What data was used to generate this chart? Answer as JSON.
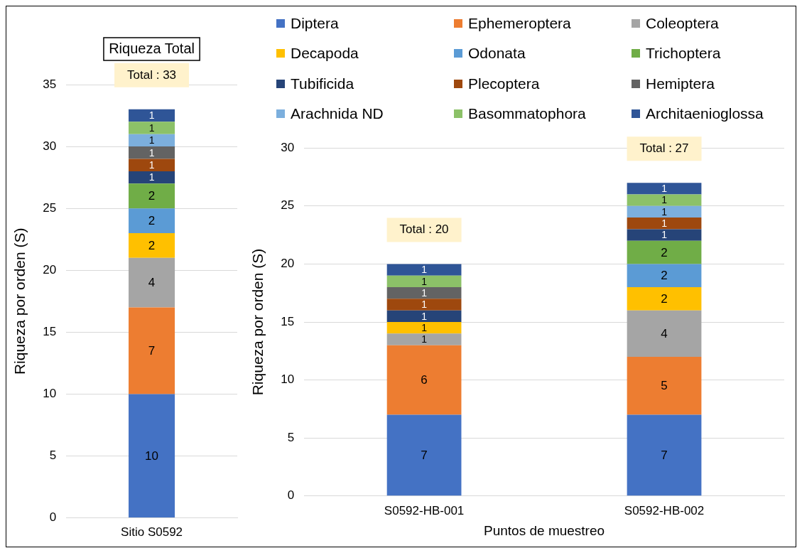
{
  "chart_data": [
    {
      "type": "bar",
      "title": "Riqueza Total",
      "ylabel": "Riqueza por orden (S)",
      "categories": [
        "Sitio S0592"
      ],
      "stacked": true,
      "ylim": [
        0,
        35
      ],
      "yticks": [
        0,
        5,
        10,
        15,
        20,
        25,
        30,
        35
      ],
      "grid": "y",
      "legend": false,
      "data_labels": true,
      "totals": [
        "Total : 33"
      ],
      "series": [
        {
          "color": "#4472c4",
          "values": [
            10
          ]
        },
        {
          "color": "#ed7d31",
          "values": [
            7
          ]
        },
        {
          "color": "#a5a5a5",
          "values": [
            4
          ]
        },
        {
          "color": "#ffc000",
          "values": [
            2
          ]
        },
        {
          "color": "#5b9bd5",
          "values": [
            2
          ]
        },
        {
          "color": "#70ad47",
          "values": [
            2
          ]
        },
        {
          "color": "#264478",
          "values": [
            1
          ]
        },
        {
          "color": "#9e480e",
          "values": [
            1
          ]
        },
        {
          "color": "#636363",
          "values": [
            1
          ]
        },
        {
          "color": "#7cafdd",
          "values": [
            1
          ]
        },
        {
          "color": "#8cc168",
          "values": [
            1
          ]
        },
        {
          "color": "#2f5597",
          "values": [
            1
          ]
        }
      ]
    },
    {
      "type": "bar",
      "ylabel": "Riqueza por orden (S)",
      "xlabel": "Puntos de muestreo",
      "categories": [
        "S0592-HB-001",
        "S0592-HB-002"
      ],
      "stacked": true,
      "ylim": [
        0,
        30
      ],
      "yticks": [
        0,
        5,
        10,
        15,
        20,
        25,
        30
      ],
      "grid": "y",
      "legend": "top",
      "data_labels": true,
      "totals": [
        "Total : 20",
        "Total : 27"
      ],
      "series": [
        {
          "name": "Diptera",
          "color": "#4472c4",
          "values": [
            7,
            7
          ]
        },
        {
          "name": "Ephemeroptera",
          "color": "#ed7d31",
          "values": [
            6,
            5
          ]
        },
        {
          "name": "Coleoptera",
          "color": "#a5a5a5",
          "values": [
            1,
            4
          ]
        },
        {
          "name": "Decapoda",
          "color": "#ffc000",
          "values": [
            1,
            2
          ]
        },
        {
          "name": "Odonata",
          "color": "#5b9bd5",
          "values": [
            null,
            2
          ]
        },
        {
          "name": "Trichoptera",
          "color": "#70ad47",
          "values": [
            null,
            2
          ]
        },
        {
          "name": "Tubificida",
          "color": "#264478",
          "values": [
            1,
            1
          ]
        },
        {
          "name": "Plecoptera",
          "color": "#9e480e",
          "values": [
            1,
            1
          ]
        },
        {
          "name": "Hemiptera",
          "color": "#636363",
          "values": [
            1,
            null
          ]
        },
        {
          "name": "Arachnida ND",
          "color": "#7cafdd",
          "values": [
            null,
            1
          ]
        },
        {
          "name": "Basommatophora",
          "color": "#8cc168",
          "values": [
            1,
            1
          ]
        },
        {
          "name": "Architaenioglossa",
          "color": "#2f5597",
          "values": [
            1,
            1
          ]
        }
      ]
    }
  ]
}
